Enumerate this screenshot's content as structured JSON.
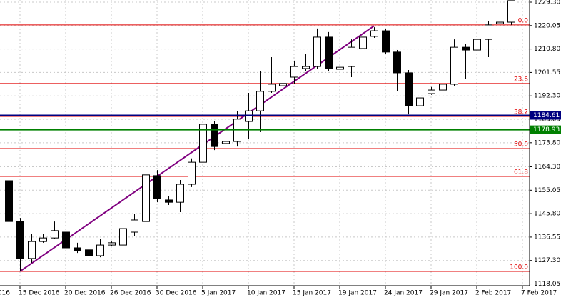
{
  "chart_data": {
    "type": "candlestick",
    "ylim": [
      1117.35,
      1230.15
    ],
    "yticks": [
      {
        "value": 1229.3,
        "label": "1229.30"
      },
      {
        "value": 1220.05,
        "label": "1220.05"
      },
      {
        "value": 1210.8,
        "label": "1210.80"
      },
      {
        "value": 1201.55,
        "label": "1201.55"
      },
      {
        "value": 1192.3,
        "label": "1192.30"
      },
      {
        "value": 1183.05,
        "label": "1183.05"
      },
      {
        "value": 1173.8,
        "label": "1173.80"
      },
      {
        "value": 1164.3,
        "label": "1164.30"
      },
      {
        "value": 1155.05,
        "label": "1155.05"
      },
      {
        "value": 1145.8,
        "label": "1145.80"
      },
      {
        "value": 1136.55,
        "label": "1136.55"
      },
      {
        "value": 1127.3,
        "label": "1127.30"
      },
      {
        "value": 1118.05,
        "label": "1118.05"
      }
    ],
    "xlim": [
      -0.75,
      45.625
    ],
    "xticks": [
      {
        "value": -3,
        "label": "016"
      },
      {
        "value": 1,
        "label": "15 Dec 2016"
      },
      {
        "value": 5,
        "label": "20 Dec 2016"
      },
      {
        "value": 9,
        "label": "26 Dec 2016"
      },
      {
        "value": 13,
        "label": "30 Dec 2016"
      },
      {
        "value": 17,
        "label": "5 Jan 2017"
      },
      {
        "value": 21,
        "label": "10 Jan 2017"
      },
      {
        "value": 25,
        "label": "15 Jan 2017"
      },
      {
        "value": 29,
        "label": "19 Jan 2017"
      },
      {
        "value": 33,
        "label": "24 Jan 2017"
      },
      {
        "value": 37,
        "label": "29 Jan 2017"
      },
      {
        "value": 41,
        "label": "2 Feb 2017"
      },
      {
        "value": 45,
        "label": "7 Feb 2017"
      }
    ],
    "grid": true,
    "up_color": "#ffffff",
    "down_color": "#000000",
    "open": [
      1158.8,
      1142.7,
      1128.1,
      1134.8,
      1136.2,
      1138.5,
      1132.3,
      1131.5,
      1129.2,
      1133.4,
      1133.4,
      1138.5,
      1142.7,
      1160.8,
      1151.2,
      1150.3,
      1157.4,
      1166.1,
      1181.1,
      1173.5,
      1174.3,
      1182.2,
      1186.4,
      1194.1,
      1196.3,
      1199.7,
      1203.1,
      1203.9,
      1215.5,
      1202.8,
      1203.9,
      1211.0,
      1215.8,
      1218.0,
      1209.6,
      1201.4,
      1188.4,
      1193.2,
      1194.6,
      1196.9,
      1211.5,
      1210.4,
      1214.6,
      1220.8,
      1221.4
    ],
    "high": [
      1165.3,
      1144.1,
      1137.7,
      1137.7,
      1142.7,
      1139.4,
      1134.3,
      1132.6,
      1135.7,
      1134.8,
      1150.3,
      1145.6,
      1162.5,
      1163.0,
      1152.6,
      1159.1,
      1167.6,
      1185.0,
      1182.2,
      1174.9,
      1186.4,
      1193.5,
      1202.0,
      1207.6,
      1199.1,
      1206.2,
      1209.0,
      1218.9,
      1217.5,
      1207.6,
      1214.6,
      1217.5,
      1219.4,
      1218.9,
      1210.4,
      1202.5,
      1193.5,
      1195.8,
      1202.0,
      1214.6,
      1212.7,
      1225.9,
      1221.7,
      1225.9,
      1229.9
    ],
    "low": [
      1139.9,
      1123.0,
      1126.4,
      1134.3,
      1135.7,
      1126.4,
      1130.3,
      1128.1,
      1128.6,
      1133.1,
      1132.3,
      1137.1,
      1142.2,
      1150.3,
      1149.2,
      1146.4,
      1156.3,
      1165.3,
      1170.9,
      1172.9,
      1172.3,
      1175.2,
      1178.0,
      1193.5,
      1194.9,
      1196.9,
      1202.0,
      1202.8,
      1202.0,
      1196.9,
      1199.7,
      1209.0,
      1215.2,
      1209.0,
      1194.1,
      1185.0,
      1180.8,
      1192.7,
      1189.3,
      1196.3,
      1199.1,
      1210.4,
      1207.6,
      1220.3,
      1220.3
    ],
    "close": [
      1142.7,
      1128.1,
      1134.8,
      1136.2,
      1139.1,
      1132.3,
      1131.2,
      1129.2,
      1133.4,
      1134.3,
      1139.9,
      1143.3,
      1161.1,
      1151.8,
      1150.3,
      1157.4,
      1166.1,
      1181.1,
      1172.3,
      1174.3,
      1183.1,
      1186.4,
      1194.1,
      1196.9,
      1197.2,
      1203.9,
      1203.9,
      1215.5,
      1203.1,
      1203.6,
      1211.5,
      1215.5,
      1218.0,
      1209.6,
      1201.4,
      1188.4,
      1191.5,
      1194.6,
      1196.9,
      1211.5,
      1210.4,
      1214.6,
      1220.3,
      1221.4,
      1229.9
    ],
    "fib_levels": [
      {
        "label": "0.0",
        "value": 1220.3
      },
      {
        "label": "23.6",
        "value": 1197.2
      },
      {
        "label": "38.2",
        "value": 1184.2
      },
      {
        "label": "50.0",
        "value": 1171.5
      },
      {
        "label": "61.8",
        "value": 1160.5
      },
      {
        "label": "100.0",
        "value": 1123.0
      }
    ],
    "fib_color": "#e00000",
    "price_lines": [
      {
        "value": 1184.61,
        "color": "#000080"
      },
      {
        "value": 1178.93,
        "color": "#008000"
      }
    ],
    "trendline": {
      "x": [
        1,
        32
      ],
      "y": [
        1123.0,
        1219.9
      ],
      "color": "#800080"
    }
  }
}
